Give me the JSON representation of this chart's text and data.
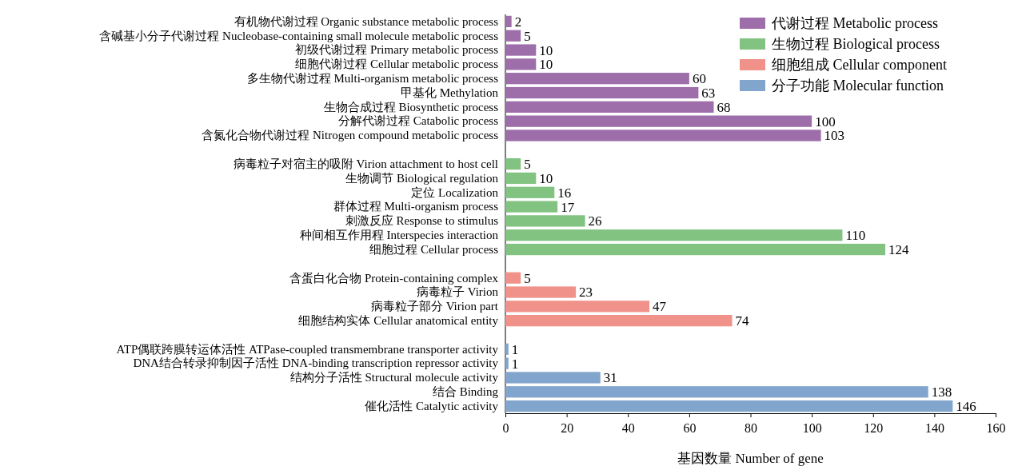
{
  "chart_data": {
    "type": "bar",
    "orientation": "horizontal",
    "xlabel": "基因数量 Number of gene",
    "xlim": [
      0,
      160
    ],
    "xticks": [
      0,
      20,
      40,
      60,
      80,
      100,
      120,
      140,
      160
    ],
    "grid": false,
    "legend": "top right",
    "data_labels": true,
    "categories": [
      "有机物代谢过程 Organic substance metabolic process",
      "含碱基小分子代谢过程 Nucleobase-containing small molecule metabolic process",
      "初级代谢过程 Primary metabolic process",
      "细胞代谢过程 Cellular metabolic process",
      "多生物代谢过程 Multi-organism metabolic process",
      "甲基化 Methylation",
      "生物合成过程 Biosynthetic process",
      "分解代谢过程 Catabolic process",
      "含氮化合物代谢过程 Nitrogen compound metabolic process",
      null,
      "病毒粒子对宿主的吸附 Virion attachment to host cell",
      "生物调节 Biological regulation",
      "定位 Localization",
      "群体过程 Multi-organism process",
      "刺激反应 Response to stimulus",
      "种间相互作用程 Interspecies interaction",
      "细胞过程 Cellular process",
      null,
      "含蛋白化合物 Protein-containing complex",
      "病毒粒子 Virion",
      "病毒粒子部分 Virion part",
      "细胞结构实体 Cellular anatomical entity",
      null,
      "ATP偶联跨膜转运体活性 ATPase-coupled transmembrane transporter activity",
      "DNA结合转录抑制因子活性 DNA-binding transcription repressor activity",
      "结构分子活性 Structural molecule activity",
      "结合 Binding",
      "催化活性 Catalytic activity"
    ],
    "series": [
      {
        "name": "代谢过程 Metabolic process",
        "color": "#9e6eaa",
        "values": [
          2,
          5,
          10,
          10,
          60,
          63,
          68,
          100,
          103,
          null,
          null,
          null,
          null,
          null,
          null,
          null,
          null,
          null,
          null,
          null,
          null,
          null,
          null,
          null,
          null,
          null,
          null,
          null
        ]
      },
      {
        "name": "生物过程 Biological process",
        "color": "#82c382",
        "values": [
          null,
          null,
          null,
          null,
          null,
          null,
          null,
          null,
          null,
          null,
          5,
          10,
          16,
          17,
          26,
          110,
          124,
          null,
          null,
          null,
          null,
          null,
          null,
          null,
          null,
          null,
          null,
          null
        ]
      },
      {
        "name": "细胞组成 Cellular component",
        "color": "#f0918a",
        "values": [
          null,
          null,
          null,
          null,
          null,
          null,
          null,
          null,
          null,
          null,
          null,
          null,
          null,
          null,
          null,
          null,
          null,
          null,
          5,
          23,
          47,
          74,
          null,
          null,
          null,
          null,
          null,
          null
        ]
      },
      {
        "name": "分子功能 Molecular function",
        "color": "#82a5cd",
        "values": [
          null,
          null,
          null,
          null,
          null,
          null,
          null,
          null,
          null,
          null,
          null,
          null,
          null,
          null,
          null,
          null,
          null,
          null,
          null,
          null,
          null,
          null,
          null,
          1,
          1,
          31,
          138,
          146
        ]
      }
    ]
  }
}
